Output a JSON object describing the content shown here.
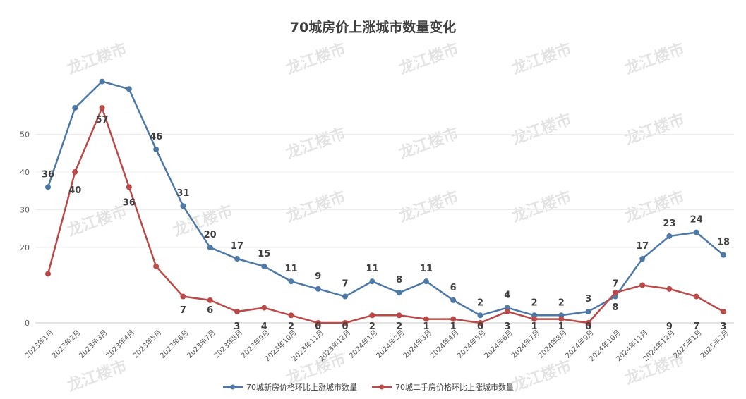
{
  "chart_data": {
    "type": "line",
    "title": "70城房价上涨城市数量变化",
    "x": [
      "2023年1月",
      "2023年2月",
      "2023年3月",
      "2023年4月",
      "2023年5月",
      "2023年6月",
      "2023年7月",
      "2023年8月",
      "2023年9月",
      "2023年10月",
      "2023年11月",
      "2023年12月",
      "2024年1月",
      "2024年2月",
      "2024年3月",
      "2024年4月",
      "2024年5月",
      "2024年6月",
      "2024年7月",
      "2024年8月",
      "2024年9月",
      "2024年10月",
      "2024年11月",
      "2024年12月",
      "2025年1月",
      "2025年2月"
    ],
    "series": [
      {
        "name": "70城新房价格环比上涨城市数量",
        "color": "#4e79a7",
        "values": [
          36,
          57,
          64,
          62,
          46,
          31,
          20,
          17,
          15,
          11,
          9,
          7,
          11,
          8,
          11,
          6,
          2,
          4,
          2,
          2,
          3,
          7,
          17,
          23,
          24,
          18
        ],
        "labels": [
          36,
          null,
          null,
          null,
          46,
          31,
          20,
          17,
          15,
          11,
          9,
          7,
          11,
          8,
          11,
          6,
          2,
          4,
          2,
          2,
          3,
          7,
          17,
          23,
          24,
          18
        ]
      },
      {
        "name": "70城二手房价格环比上涨城市数量",
        "color": "#b94a48",
        "values": [
          13,
          40,
          57,
          36,
          15,
          7,
          6,
          3,
          4,
          2,
          0,
          0,
          2,
          2,
          1,
          1,
          0,
          3,
          1,
          1,
          0,
          8,
          10,
          9,
          7,
          3
        ],
        "labels": [
          null,
          40,
          57,
          36,
          null,
          7,
          6,
          3,
          4,
          2,
          0,
          0,
          2,
          2,
          1,
          1,
          0,
          3,
          1,
          1,
          0,
          8,
          null,
          9,
          7,
          3
        ]
      }
    ],
    "yticks": [
      0,
      20,
      30,
      40,
      50
    ],
    "ylim": [
      0,
      65
    ],
    "legend": "bottom",
    "watermark": "龙江楼市"
  }
}
